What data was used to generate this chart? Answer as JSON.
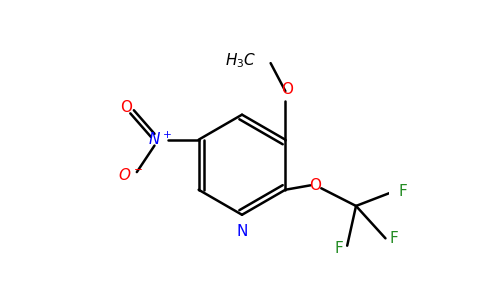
{
  "bg_color": "#ffffff",
  "bond_color": "#000000",
  "N_color": "#0000ff",
  "O_color": "#ff0000",
  "F_color": "#228B22",
  "figsize": [
    4.84,
    3.0
  ],
  "dpi": 100,
  "xlim": [
    0.0,
    10.0
  ],
  "ylim": [
    0.0,
    10.0
  ],
  "lw": 1.8,
  "fontsize": 11
}
